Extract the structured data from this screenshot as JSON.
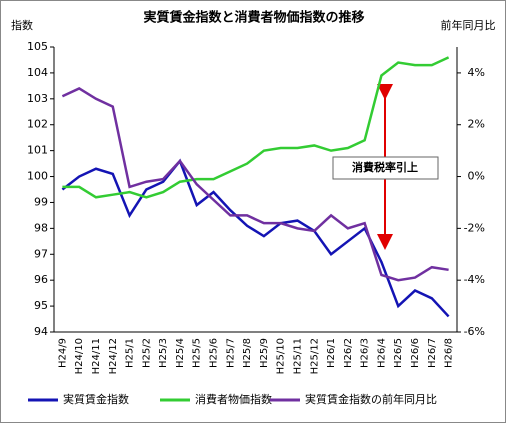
{
  "chart_data": {
    "type": "line",
    "title": "実質賃金指数と消費者物価指数の推移",
    "y_label": "指数",
    "y2_label": "前年同月比",
    "annotation": "消費税率引上",
    "categories": [
      "H24/9",
      "H24/10",
      "H24/11",
      "H24/12",
      "H25/1",
      "H25/2",
      "H25/3",
      "H25/4",
      "H25/5",
      "H25/6",
      "H25/7",
      "H25/8",
      "H25/9",
      "H25/10",
      "H25/11",
      "H25/12",
      "H26/1",
      "H26/2",
      "H26/3",
      "H26/4",
      "H26/5",
      "H26/6",
      "H26/7",
      "H26/8"
    ],
    "series": [
      {
        "name": "実質賃金指数",
        "color": "#1414b4",
        "values": [
          99.5,
          100.0,
          100.3,
          100.1,
          98.5,
          99.5,
          99.8,
          100.6,
          98.9,
          99.4,
          98.7,
          98.1,
          97.7,
          98.2,
          98.3,
          97.9,
          97.0,
          97.5,
          98.0,
          96.7,
          95.0,
          95.6,
          95.3,
          94.6
        ]
      },
      {
        "name": "消費者物価指数",
        "color": "#33cc33",
        "values": [
          99.6,
          99.6,
          99.2,
          99.3,
          99.4,
          99.2,
          99.4,
          99.8,
          99.9,
          99.9,
          100.2,
          100.5,
          101.0,
          101.1,
          101.1,
          101.2,
          101.0,
          101.1,
          101.4,
          103.9,
          104.4,
          104.3,
          104.3,
          104.6
        ]
      },
      {
        "name": "実質賃金指数の前年同月比",
        "color": "#7030a0",
        "axis": "y2",
        "values": [
          3.1,
          3.4,
          3.0,
          2.7,
          -0.4,
          -0.2,
          -0.1,
          0.6,
          -0.3,
          -0.9,
          -1.5,
          -1.5,
          -1.8,
          -1.8,
          -2.0,
          -2.1,
          -1.5,
          -2.0,
          -1.8,
          -3.8,
          -4.0,
          -3.9,
          -3.5,
          -3.6
        ]
      }
    ],
    "ylim": [
      94,
      105
    ],
    "yticks": [
      94,
      95,
      96,
      97,
      98,
      99,
      100,
      101,
      102,
      103,
      104,
      105
    ],
    "y2lim": [
      -6,
      5
    ],
    "y2ticks": [
      {
        "value": -6,
        "label": "-6%"
      },
      {
        "value": -4,
        "label": "-4%"
      },
      {
        "value": -2,
        "label": "-2%"
      },
      {
        "value": 0,
        "label": "0%"
      },
      {
        "value": 2,
        "label": "2%"
      },
      {
        "value": 4,
        "label": "4%"
      }
    ]
  }
}
